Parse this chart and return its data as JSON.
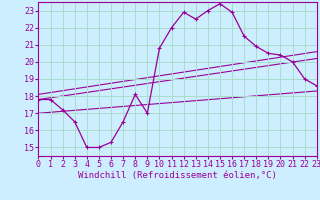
{
  "xlabel": "Windchill (Refroidissement éolien,°C)",
  "bg_color": "#cceeff",
  "grid_color": "#aaddcc",
  "line_color": "#990099",
  "x_ticks": [
    0,
    1,
    2,
    3,
    4,
    5,
    6,
    7,
    8,
    9,
    10,
    11,
    12,
    13,
    14,
    15,
    16,
    17,
    18,
    19,
    20,
    21,
    22,
    23
  ],
  "xlim": [
    0,
    23
  ],
  "ylim": [
    14.5,
    23.5
  ],
  "y_ticks": [
    15,
    16,
    17,
    18,
    19,
    20,
    21,
    22,
    23
  ],
  "series1_x": [
    0,
    1,
    2,
    3,
    4,
    5,
    6,
    7,
    8,
    9,
    10,
    11,
    12,
    13,
    14,
    15,
    16,
    17,
    18,
    19,
    20,
    21,
    22,
    23
  ],
  "series1_y": [
    17.8,
    17.8,
    17.2,
    16.5,
    15.0,
    15.0,
    15.3,
    16.5,
    18.1,
    17.0,
    20.8,
    22.0,
    22.9,
    22.5,
    23.0,
    23.4,
    22.9,
    21.5,
    20.9,
    20.5,
    20.4,
    20.0,
    19.0,
    18.6
  ],
  "series2_x": [
    0,
    23
  ],
  "series2_y": [
    17.8,
    20.2
  ],
  "series3_x": [
    0,
    23
  ],
  "series3_y": [
    18.1,
    20.6
  ],
  "series4_x": [
    0,
    23
  ],
  "series4_y": [
    17.0,
    18.3
  ],
  "tick_fontsize": 6.0,
  "xlabel_fontsize": 6.5
}
